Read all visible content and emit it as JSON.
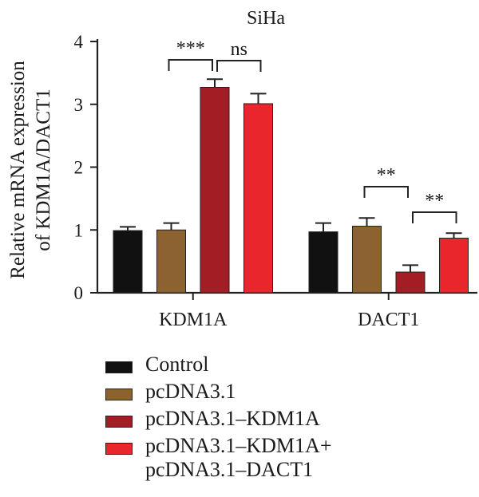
{
  "chart_data": {
    "type": "bar",
    "title": "SiHa",
    "ylabel_line1": "Relative mRNA expression",
    "ylabel_line2": "of KDM1A/DACT1",
    "ylim": [
      0,
      4
    ],
    "yticks": [
      "0",
      "1",
      "2",
      "3",
      "4"
    ],
    "categories": [
      "KDM1A",
      "DACT1"
    ],
    "series": [
      {
        "name": "Control",
        "color": "#111111",
        "values": [
          0.99,
          0.97
        ],
        "errors": [
          0.06,
          0.14
        ]
      },
      {
        "name": "pcDNA3.1",
        "color": "#8c6231",
        "values": [
          1.0,
          1.06
        ],
        "errors": [
          0.11,
          0.13
        ]
      },
      {
        "name": "pcDNA3.1–KDM1A",
        "color": "#a31d25",
        "values": [
          3.27,
          0.33
        ],
        "errors": [
          0.13,
          0.11
        ]
      },
      {
        "name": "pcDNA3.1–KDM1A+ pcDNA3.1–DACT1",
        "color": "#e8262b",
        "values": [
          3.01,
          0.87
        ],
        "errors": [
          0.16,
          0.08
        ]
      }
    ],
    "significance": [
      {
        "category": "KDM1A",
        "from_series": 1,
        "to_series": 2,
        "label": "***"
      },
      {
        "category": "KDM1A",
        "from_series": 2,
        "to_series": 3,
        "label": "ns"
      },
      {
        "category": "DACT1",
        "from_series": 1,
        "to_series": 2,
        "label": "**"
      },
      {
        "category": "DACT1",
        "from_series": 2,
        "to_series": 3,
        "label": "**"
      }
    ]
  },
  "legend": {
    "items": [
      {
        "label": "Control",
        "color": "#111111"
      },
      {
        "label": "pcDNA3.1",
        "color": "#8c6231"
      },
      {
        "label": "pcDNA3.1–KDM1A",
        "color": "#a31d25"
      },
      {
        "label_line1": "pcDNA3.1–KDM1A+",
        "label_line2": "pcDNA3.1–DACT1",
        "color": "#e8262b"
      }
    ]
  }
}
